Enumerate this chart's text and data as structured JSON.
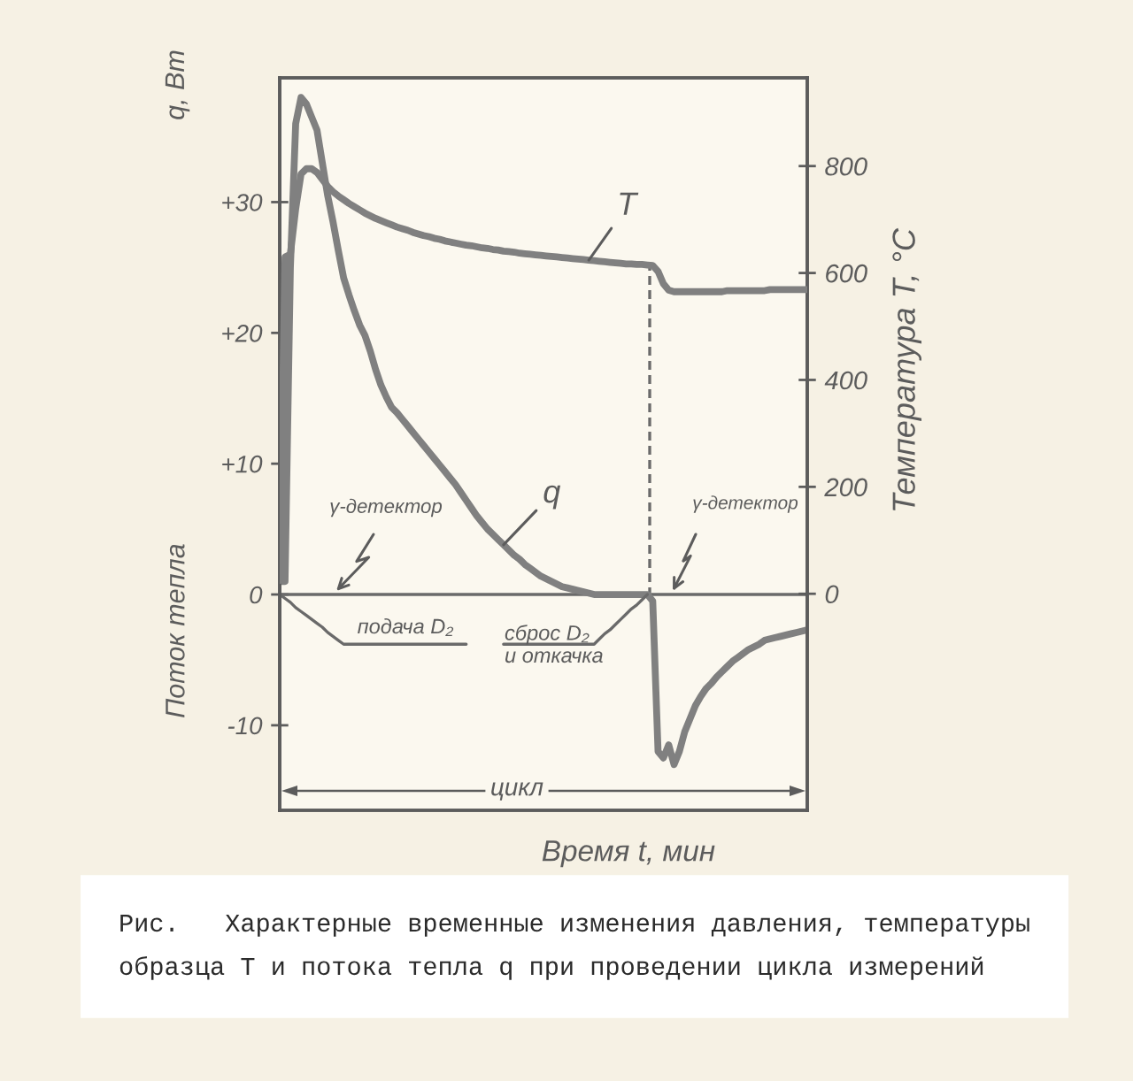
{
  "chart_data": {
    "type": "line",
    "xlabel": "Время t, мин",
    "ylabel": "Поток тепла",
    "y2label": "Температура T, °C",
    "categories": [
      null,
      null,
      null,
      null,
      null,
      null,
      null,
      null,
      null,
      null,
      null,
      null,
      null,
      null,
      null,
      null,
      null,
      null,
      null,
      null,
      null,
      null,
      null,
      null,
      null,
      null,
      null,
      null,
      null,
      null,
      null,
      null,
      null,
      null,
      null,
      null,
      null,
      null,
      null,
      null,
      null,
      null,
      null,
      null,
      null,
      null,
      null,
      null,
      null,
      null,
      null,
      null,
      null,
      null,
      null,
      null,
      null,
      null,
      null,
      null,
      null,
      null,
      null,
      null,
      null,
      null,
      null,
      null,
      null,
      null,
      null,
      null,
      null,
      null,
      null,
      null,
      null,
      null,
      null,
      null,
      null,
      null,
      null,
      null,
      null,
      null,
      null,
      null,
      null,
      null,
      null,
      null,
      null,
      null,
      null,
      null,
      null,
      null,
      null,
      null
    ],
    "series": [
      {
        "name": "T",
        "color": "#808080",
        "axis": "y2",
        "values": [
          25,
          630,
          635,
          720,
          785,
          795,
          795,
          788,
          775,
          762,
          752,
          744,
          737,
          730,
          724,
          718,
          712,
          707,
          702,
          698,
          694,
          690,
          686,
          683,
          680,
          676,
          673,
          670,
          668,
          665,
          663,
          660,
          658,
          656,
          654,
          652,
          651,
          649,
          647,
          646,
          644,
          643,
          641,
          640,
          639,
          637,
          636,
          635,
          634,
          633,
          632,
          631,
          630,
          629,
          628,
          627,
          626,
          625,
          624,
          623,
          622,
          621,
          620,
          619,
          618,
          617,
          617,
          616,
          616,
          615,
          614,
          603,
          580,
          568,
          565,
          565,
          565,
          565,
          565,
          565,
          565,
          565,
          565,
          565,
          567,
          567,
          567,
          567,
          567,
          567,
          567,
          567,
          569,
          569,
          569,
          569,
          569,
          569,
          569,
          569
        ]
      },
      {
        "name": "q",
        "color": "#808080",
        "values": [
          1,
          1,
          25,
          36,
          38,
          37.5,
          36.5,
          35.5,
          33,
          30.5,
          28.5,
          26.3,
          24.2,
          22.9,
          21.7,
          20.6,
          19.8,
          18.6,
          17.2,
          16,
          15.1,
          14.3,
          13.9,
          13.4,
          12.9,
          12.4,
          11.9,
          11.4,
          10.9,
          10.4,
          9.9,
          9.4,
          8.9,
          8.4,
          7.8,
          7.2,
          6.6,
          6,
          5.5,
          5,
          4.6,
          4.2,
          3.8,
          3.4,
          3,
          2.7,
          2.3,
          2,
          1.7,
          1.4,
          1.2,
          1,
          0.8,
          0.6,
          0.5,
          0.4,
          0.3,
          0.2,
          0.1,
          0,
          0,
          0,
          0,
          0,
          0,
          0,
          0,
          0,
          0,
          0,
          -0.5,
          -12,
          -12.5,
          -11.5,
          -13,
          -12,
          -10.5,
          -9.5,
          -8.5,
          -7.8,
          -7.2,
          -6.8,
          -6.3,
          -5.9,
          -5.5,
          -5.1,
          -4.8,
          -4.5,
          -4.2,
          -4,
          -3.8,
          -3.5,
          -3.4,
          -3.3,
          -3.2,
          -3.1,
          -3,
          -2.9,
          -2.8,
          -2.7
        ]
      },
      {
        "color": "#6a6a6a",
        "values": [
          0,
          -0.3,
          -0.6,
          -1,
          -1.3,
          -1.6,
          -1.9,
          -2.2,
          -2.5,
          -2.9,
          -3.2,
          -3.5,
          -3.8,
          -3.8,
          -3.8,
          -3.8,
          -3.8,
          -3.8,
          -3.8,
          -3.8,
          -3.8,
          -3.8,
          -3.8,
          -3.8,
          -3.8,
          -3.8,
          -3.8,
          -3.8,
          -3.8,
          -3.8,
          -3.8,
          -3.8,
          -3.8,
          -3.8,
          -3.8,
          -3.8,
          null,
          null,
          null,
          null,
          null,
          null,
          -3.8,
          -3.8,
          -3.8,
          -3.8,
          -3.8,
          -3.8,
          -3.8,
          -3.8,
          -3.8,
          -3.8,
          -3.8,
          -3.8,
          -3.8,
          -3.8,
          -3.8,
          -3.8,
          -3.8,
          -3.8,
          -3.4,
          -3,
          -2.7,
          -2.3,
          -1.9,
          -1.5,
          -1.1,
          -0.8,
          -0.4,
          0,
          null,
          null,
          null,
          null,
          null,
          null,
          null,
          null,
          null,
          null,
          null,
          null,
          null,
          null,
          null,
          null,
          null,
          null,
          null,
          null,
          null,
          null,
          null,
          null,
          null,
          null,
          null,
          null,
          null,
          null
        ]
      }
    ],
    "ylim": [
      -16.5,
      39.5
    ],
    "yticks": [
      {
        "value": -10,
        "label": "-10"
      },
      0,
      {
        "value": 10,
        "label": "+10"
      },
      {
        "value": 20,
        "label": "+20"
      },
      {
        "value": 30,
        "label": "+30"
      }
    ],
    "y2lim": [
      -405,
      965
    ],
    "y2ticks": [
      0,
      200,
      400,
      600,
      800
    ],
    "ref_lines": [
      {
        "axis": "y",
        "value": 0,
        "color": "#6a6a6a",
        "line_style": "solid"
      }
    ],
    "line_style": "solid",
    "annotations": [
      "q, Вт",
      "γ-детектор",
      "γ-детектор",
      "подача D₂",
      "сброс D₂\nи откачка",
      "цикл",
      "Рис.   Характерные временные изменения давления, температуры\nобразца T и потока тепла q при проведении цикла измерений"
    ]
  }
}
